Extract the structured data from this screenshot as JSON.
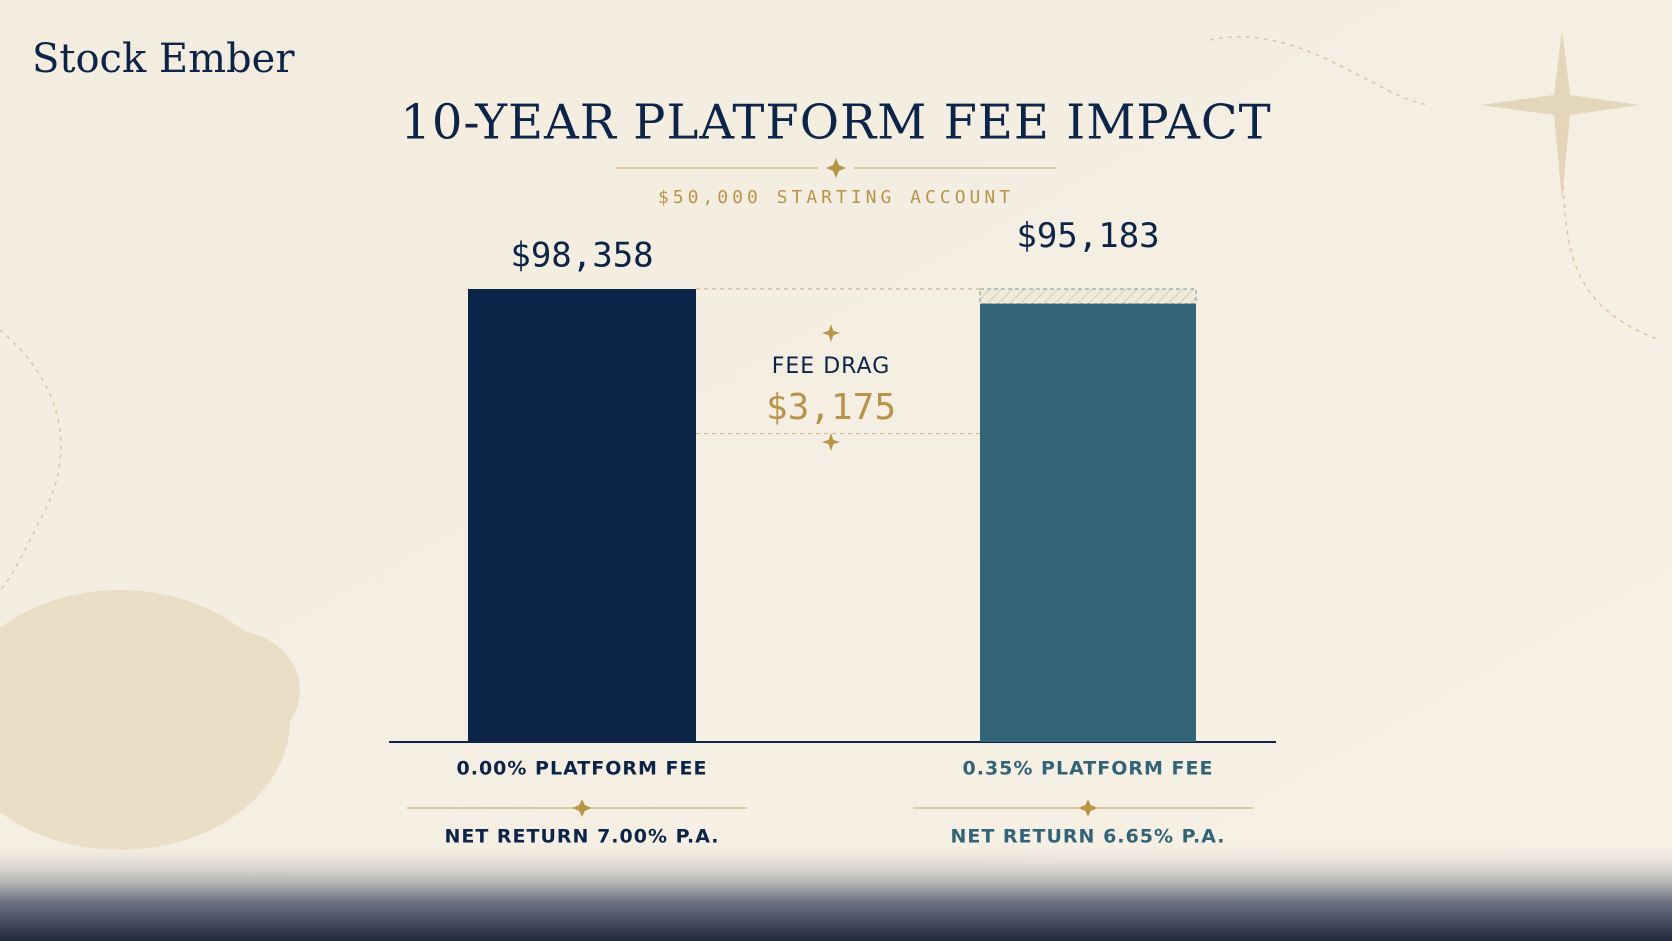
{
  "chart_data": {
    "type": "bar",
    "brand": "Stock Ember",
    "title": "10-YEAR PLATFORM FEE IMPACT",
    "subtitle": "$50,000 STARTING ACCOUNT",
    "categories": [
      "0.00% PLATFORM FEE",
      "0.35% PLATFORM FEE"
    ],
    "notes": [
      "NET RETURN 7.00% P.A.",
      "NET RETURN 6.65% P.A."
    ],
    "values": [
      98358,
      95183
    ],
    "value_labels": [
      "$98,358",
      "$95,183"
    ],
    "colors": [
      "#0b2447",
      "#336377"
    ],
    "fee_drag": {
      "label": "FEE DRAG",
      "value": 3175,
      "value_label": "$3,175"
    }
  }
}
